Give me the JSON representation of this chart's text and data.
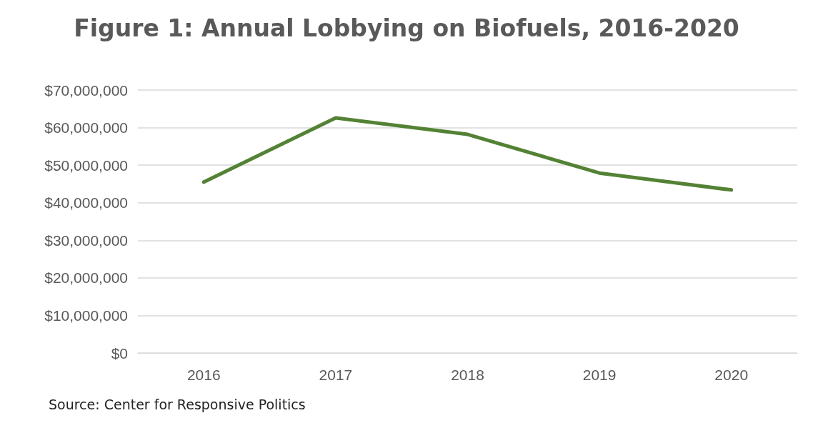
{
  "chart_data": {
    "type": "line",
    "title": "Figure 1: Annual Lobbying on Biofuels, 2016-2020",
    "categories": [
      "2016",
      "2017",
      "2018",
      "2019",
      "2020"
    ],
    "series": [
      {
        "color": "#548235",
        "values": [
          45500000,
          62600000,
          58200000,
          47900000,
          43400000
        ]
      }
    ],
    "ylim": [
      0,
      70000000
    ],
    "yticks": [
      {
        "value": 0,
        "label": "$0"
      },
      {
        "value": 10000000,
        "label": "$10,000,000"
      },
      {
        "value": 20000000,
        "label": "$20,000,000"
      },
      {
        "value": 30000000,
        "label": "$30,000,000"
      },
      {
        "value": 40000000,
        "label": "$40,000,000"
      },
      {
        "value": 50000000,
        "label": "$50,000,000"
      },
      {
        "value": 60000000,
        "label": "$60,000,000"
      },
      {
        "value": 70000000,
        "label": "$70,000,000"
      }
    ],
    "grid": "y",
    "marker": "none",
    "line_style": "solid",
    "annotations": [
      "Source: Center for Responsive Politics"
    ]
  }
}
